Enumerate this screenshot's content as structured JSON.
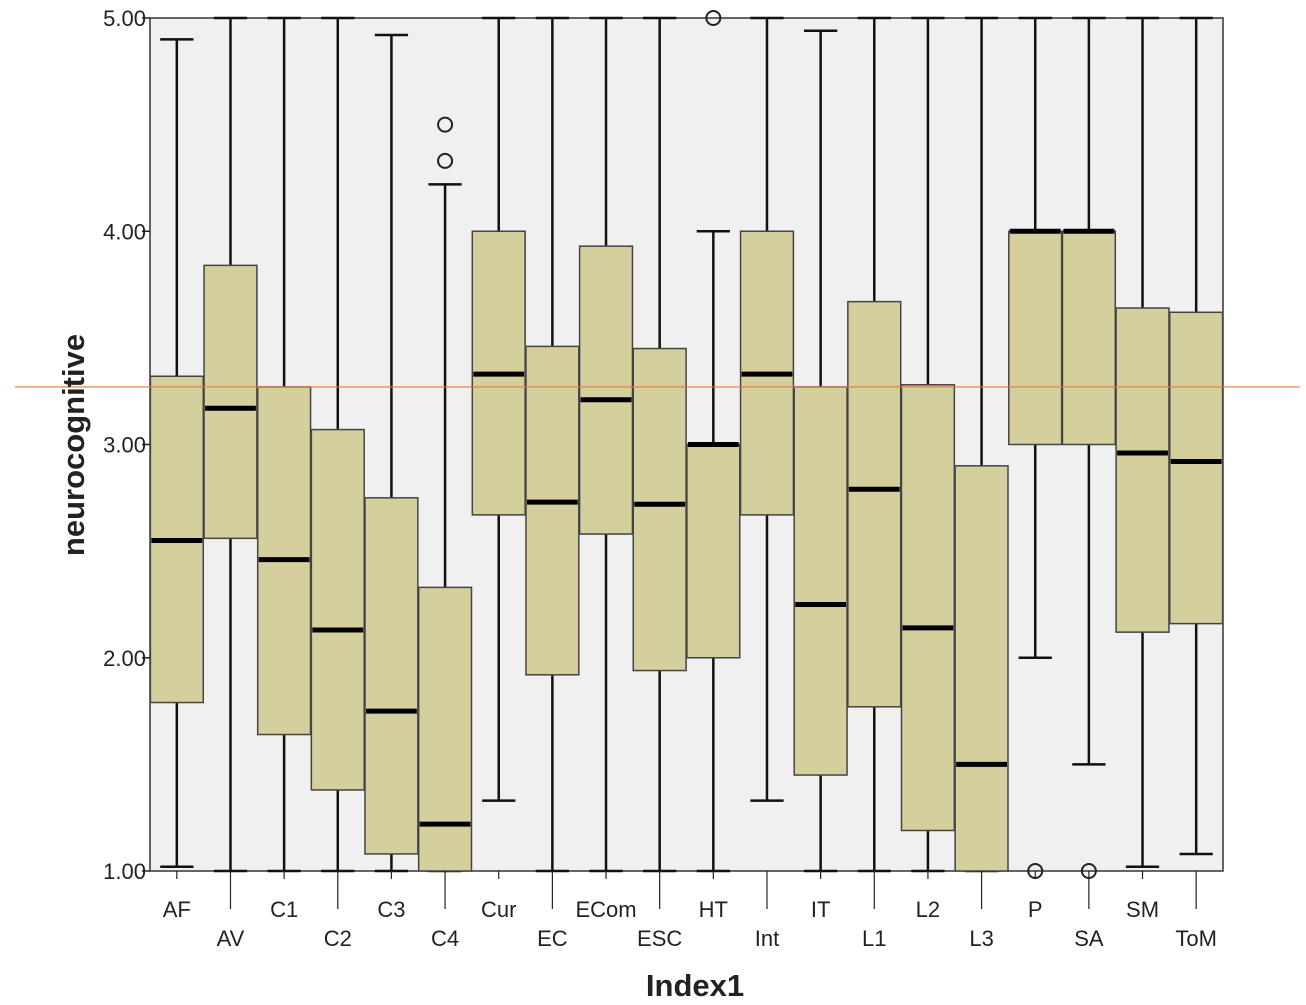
{
  "chart_data": {
    "type": "boxplot",
    "xlabel": "Index1",
    "ylabel": "neurocognitive",
    "ylim": [
      1,
      5
    ],
    "yticks": [
      "1.00",
      "2.00",
      "3.00",
      "4.00",
      "5.00"
    ],
    "grid": false,
    "box_color": "#d4cf9c",
    "plot_background": "#f0f0f0",
    "reference_line": {
      "y": 3.27,
      "color": "#e07b39"
    },
    "categories": [
      "AF",
      "AV",
      "C1",
      "C2",
      "C3",
      "C4",
      "Cur",
      "EC",
      "ECom",
      "ESC",
      "HT",
      "Int",
      "IT",
      "L1",
      "L2",
      "L3",
      "P",
      "SA",
      "SM",
      "ToM"
    ],
    "boxes": [
      {
        "category": "AF",
        "whisker_low": 1.02,
        "q1": 1.79,
        "median": 2.55,
        "q3": 3.32,
        "whisker_high": 4.9,
        "outliers": []
      },
      {
        "category": "AV",
        "whisker_low": 1.0,
        "q1": 2.56,
        "median": 3.17,
        "q3": 3.84,
        "whisker_high": 5.0,
        "outliers": []
      },
      {
        "category": "C1",
        "whisker_low": 1.0,
        "q1": 1.64,
        "median": 2.46,
        "q3": 3.27,
        "whisker_high": 5.0,
        "outliers": []
      },
      {
        "category": "C2",
        "whisker_low": 1.0,
        "q1": 1.38,
        "median": 2.13,
        "q3": 3.07,
        "whisker_high": 5.0,
        "outliers": []
      },
      {
        "category": "C3",
        "whisker_low": 1.0,
        "q1": 1.08,
        "median": 1.75,
        "q3": 2.75,
        "whisker_high": 4.92,
        "outliers": []
      },
      {
        "category": "C4",
        "whisker_low": 1.0,
        "q1": 1.0,
        "median": 1.22,
        "q3": 2.33,
        "whisker_high": 4.22,
        "outliers": [
          4.33,
          4.5
        ]
      },
      {
        "category": "Cur",
        "whisker_low": 1.33,
        "q1": 2.67,
        "median": 3.33,
        "q3": 4.0,
        "whisker_high": 5.0,
        "outliers": []
      },
      {
        "category": "EC",
        "whisker_low": 1.0,
        "q1": 1.92,
        "median": 2.73,
        "q3": 3.46,
        "whisker_high": 5.0,
        "outliers": []
      },
      {
        "category": "ECom",
        "whisker_low": 1.0,
        "q1": 2.58,
        "median": 3.21,
        "q3": 3.93,
        "whisker_high": 5.0,
        "outliers": []
      },
      {
        "category": "ESC",
        "whisker_low": 1.0,
        "q1": 1.94,
        "median": 2.72,
        "q3": 3.45,
        "whisker_high": 5.0,
        "outliers": []
      },
      {
        "category": "HT",
        "whisker_low": 1.0,
        "q1": 2.0,
        "median": 3.0,
        "q3": 3.0,
        "whisker_high": 4.0,
        "outliers": [
          5.0
        ]
      },
      {
        "category": "Int",
        "whisker_low": 1.33,
        "q1": 2.67,
        "median": 3.33,
        "q3": 4.0,
        "whisker_high": 5.0,
        "outliers": []
      },
      {
        "category": "IT",
        "whisker_low": 1.0,
        "q1": 1.45,
        "median": 2.25,
        "q3": 3.27,
        "whisker_high": 4.94,
        "outliers": []
      },
      {
        "category": "L1",
        "whisker_low": 1.0,
        "q1": 1.77,
        "median": 2.79,
        "q3": 3.67,
        "whisker_high": 5.0,
        "outliers": []
      },
      {
        "category": "L2",
        "whisker_low": 1.0,
        "q1": 1.19,
        "median": 2.14,
        "q3": 3.28,
        "whisker_high": 5.0,
        "outliers": []
      },
      {
        "category": "L3",
        "whisker_low": 1.0,
        "q1": 1.0,
        "median": 1.5,
        "q3": 2.9,
        "whisker_high": 5.0,
        "outliers": []
      },
      {
        "category": "P",
        "whisker_low": 2.0,
        "q1": 3.0,
        "median": 4.0,
        "q3": 4.0,
        "whisker_high": 5.0,
        "outliers": [
          1.0
        ]
      },
      {
        "category": "SA",
        "whisker_low": 1.5,
        "q1": 3.0,
        "median": 4.0,
        "q3": 4.0,
        "whisker_high": 5.0,
        "outliers": [
          1.0
        ]
      },
      {
        "category": "SM",
        "whisker_low": 1.02,
        "q1": 2.12,
        "median": 2.96,
        "q3": 3.64,
        "whisker_high": 5.0,
        "outliers": []
      },
      {
        "category": "ToM",
        "whisker_low": 1.08,
        "q1": 2.16,
        "median": 2.92,
        "q3": 3.62,
        "whisker_high": 5.0,
        "outliers": []
      }
    ]
  }
}
